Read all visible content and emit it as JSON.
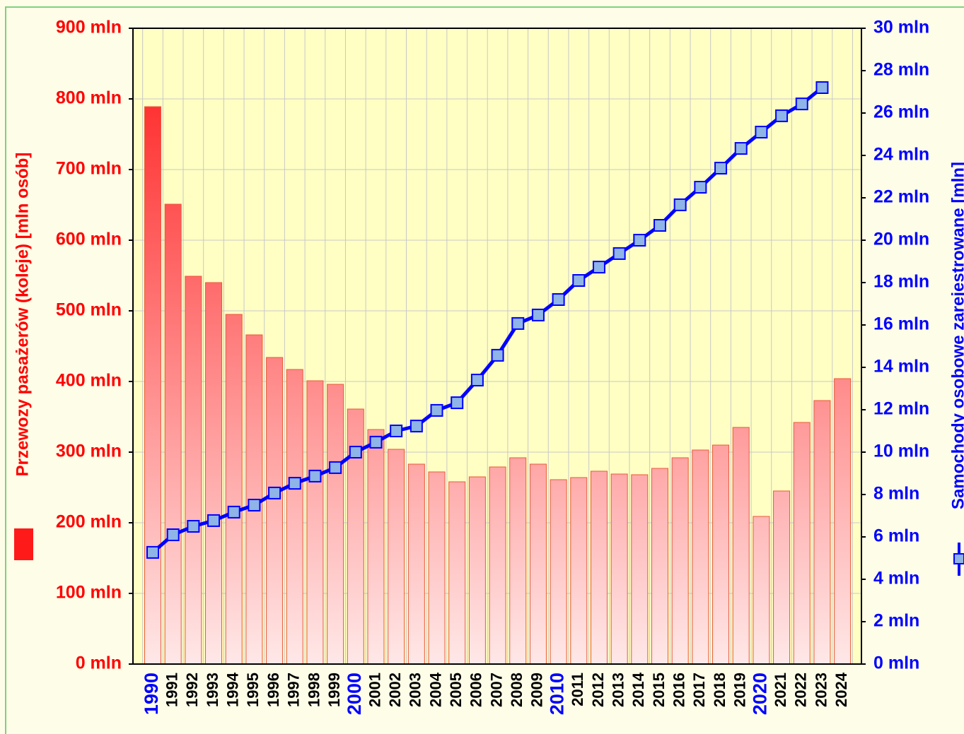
{
  "chart_data": {
    "type": "combo",
    "y_label": "Przewozy pasażerów (koleje) [mln osób]",
    "y2_label": "Samochody osobowe zarejestrowane [mln]",
    "categories": [
      "1990",
      "1991",
      "1992",
      "1993",
      "1994",
      "1995",
      "1996",
      "1997",
      "1998",
      "1999",
      "2000",
      "2001",
      "2002",
      "2003",
      "2004",
      "2005",
      "2006",
      "2007",
      "2008",
      "2009",
      "2010",
      "2011",
      "2012",
      "2013",
      "2014",
      "2015",
      "2016",
      "2017",
      "2018",
      "2019",
      "2020",
      "2021",
      "2022",
      "2023",
      "2024"
    ],
    "series": [
      {
        "name": "Przewozy pasażerów (koleje)",
        "type": "bar",
        "color": "#ff1a1a",
        "values": [
          789,
          651,
          549,
          540,
          495,
          466,
          434,
          417,
          401,
          396,
          361,
          332,
          304,
          283,
          272,
          258,
          265,
          279,
          292,
          283,
          261,
          264,
          273,
          269,
          268,
          277,
          292,
          303,
          310,
          335,
          209,
          245,
          342,
          373,
          404
        ]
      },
      {
        "name": "Samochody osobowe zarejestrowane",
        "type": "line",
        "axis": "y2",
        "color": "#0000ff",
        "values": [
          5.27,
          6.1,
          6.5,
          6.77,
          7.17,
          7.5,
          8.07,
          8.53,
          8.87,
          9.27,
          10.0,
          10.47,
          11.0,
          11.23,
          11.97,
          12.33,
          13.4,
          14.57,
          16.07,
          16.47,
          17.2,
          18.1,
          18.73,
          19.37,
          20.0,
          20.7,
          21.67,
          22.5,
          23.4,
          24.33,
          25.1,
          25.87,
          26.43,
          27.2,
          null
        ]
      }
    ],
    "ylim": [
      0,
      900
    ],
    "yticks": [
      {
        "value": 0,
        "label": "0 mln"
      },
      {
        "value": 100,
        "label": "100 mln"
      },
      {
        "value": 200,
        "label": "200 mln"
      },
      {
        "value": 300,
        "label": "300 mln"
      },
      {
        "value": 400,
        "label": "400 mln"
      },
      {
        "value": 500,
        "label": "500 mln"
      },
      {
        "value": 600,
        "label": "600 mln"
      },
      {
        "value": 700,
        "label": "700 mln"
      },
      {
        "value": 800,
        "label": "800 mln"
      },
      {
        "value": 900,
        "label": "900 mln"
      }
    ],
    "y2lim": [
      0,
      30
    ],
    "y2ticks": [
      {
        "value": 0,
        "label": "0 mln"
      },
      {
        "value": 2,
        "label": "2 mln"
      },
      {
        "value": 4,
        "label": "4 mln"
      },
      {
        "value": 6,
        "label": "6 mln"
      },
      {
        "value": 8,
        "label": "8 mln"
      },
      {
        "value": 10,
        "label": "10 mln"
      },
      {
        "value": 12,
        "label": "12 mln"
      },
      {
        "value": 14,
        "label": "14 mln"
      },
      {
        "value": 16,
        "label": "16 mln"
      },
      {
        "value": 18,
        "label": "18 mln"
      },
      {
        "value": 20,
        "label": "20 mln"
      },
      {
        "value": 22,
        "label": "22 mln"
      },
      {
        "value": 24,
        "label": "24 mln"
      },
      {
        "value": 26,
        "label": "26 mln"
      },
      {
        "value": 28,
        "label": "28 mln"
      },
      {
        "value": 30,
        "label": "30 mln"
      }
    ],
    "grid": true
  }
}
